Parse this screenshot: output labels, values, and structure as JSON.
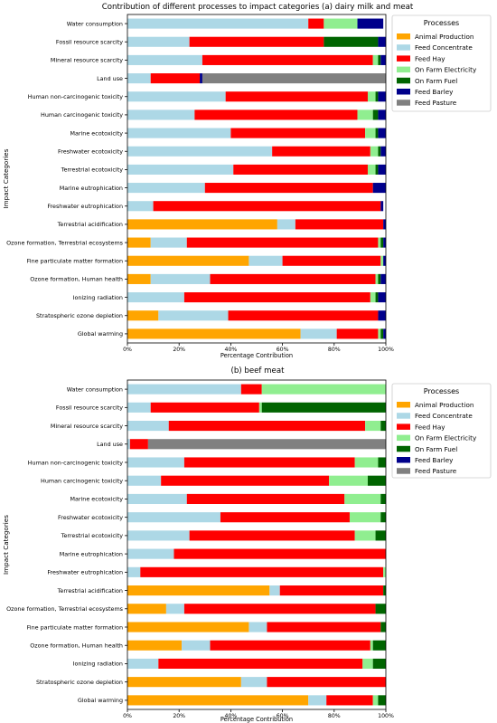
{
  "chart_data": [
    {
      "type": "bar",
      "orientation": "horizontal",
      "stacked": true,
      "title": "Contribution of different processes to impact categories (a) dairy milk and meat",
      "xlabel": "Percentage Contribution",
      "ylabel": "Impact Categories",
      "xlim": [
        0,
        100
      ],
      "xticks": [
        "0%",
        "20%",
        "40%",
        "60%",
        "80%",
        "100%"
      ],
      "legend": {
        "title": "Processes",
        "placement": "right-outside"
      },
      "categories": [
        "Water consumption",
        "Fossil resource scarcity",
        "Mineral resource scarcity",
        "Land use",
        "Human non-carcinogenic toxicity",
        "Human carcinogenic toxicity",
        "Marine ecotoxicity",
        "Freshwater ecotoxicity",
        "Terrestrial ecotoxicity",
        "Marine eutrophication",
        "Freshwater eutrophication",
        "Terrestrial acidification",
        "Ozone formation, Terrestrial ecosystems",
        "Fine particulate matter formation",
        "Ozone formation, Human health",
        "Ionizing radiation",
        "Stratospheric ozone depletion",
        "Global warming"
      ],
      "series": [
        {
          "name": "Animal Production",
          "color": "#FFA500",
          "values": [
            0,
            0,
            0,
            0,
            0,
            0,
            0,
            0,
            0,
            0,
            0,
            58,
            9,
            47,
            9,
            0,
            12,
            67
          ]
        },
        {
          "name": "Feed Concentrate",
          "color": "#ADD8E6",
          "values": [
            70,
            24,
            29,
            9,
            38,
            26,
            40,
            56,
            41,
            30,
            10,
            7,
            14,
            13,
            23,
            22,
            27,
            14
          ]
        },
        {
          "name": "Feed Hay",
          "color": "#FF0000",
          "values": [
            6,
            52,
            66,
            19,
            55,
            63,
            52,
            38,
            52,
            65,
            88,
            34,
            74,
            38,
            64,
            72,
            58,
            16
          ]
        },
        {
          "name": "On Farm Electricity",
          "color": "#90EE90",
          "values": [
            13,
            0,
            2,
            0,
            3,
            6,
            4,
            3,
            3,
            0,
            0,
            0,
            1,
            1,
            1,
            2,
            0,
            1
          ]
        },
        {
          "name": "On Farm Fuel",
          "color": "#006400",
          "values": [
            0,
            21,
            1,
            0,
            1,
            2,
            1,
            1,
            1,
            0,
            0,
            0,
            1,
            0,
            1,
            1,
            0,
            1
          ]
        },
        {
          "name": "Feed Barley",
          "color": "#00008B",
          "values": [
            10,
            3,
            2,
            1,
            3,
            3,
            3,
            2,
            3,
            5,
            1,
            1,
            1,
            1,
            2,
            3,
            3,
            1
          ]
        },
        {
          "name": "Feed Pasture",
          "color": "#808080",
          "values": [
            0,
            0,
            0,
            71,
            0,
            0,
            0,
            0,
            0,
            0,
            0,
            0,
            0,
            0,
            0,
            0,
            0,
            0
          ]
        }
      ]
    },
    {
      "type": "bar",
      "orientation": "horizontal",
      "stacked": true,
      "title": "(b) beef meat",
      "xlabel": "Percentage Contribution",
      "ylabel": "Impact Categories",
      "xlim": [
        0,
        100
      ],
      "xticks": [
        "0%",
        "20%",
        "40%",
        "60%",
        "80%",
        "100%"
      ],
      "legend": {
        "title": "Processes",
        "placement": "top-right"
      },
      "categories": [
        "Water consumption",
        "Fossil resource scarcity",
        "Mineral resource scarcity",
        "Land use",
        "Human non-carcinogenic toxicity",
        "Human carcinogenic toxicity",
        "Marine ecotoxicity",
        "Freshwater ecotoxicity",
        "Terrestrial ecotoxicity",
        "Marine eutrophication",
        "Freshwater eutrophication",
        "Terrestrial acidification",
        "Ozone formation, Terrestrial ecosystems",
        "Fine particulate matter formation",
        "Ozone formation, Human health",
        "Ionizing radiation",
        "Stratospheric ozone depletion",
        "Global warming"
      ],
      "series": [
        {
          "name": "Animal Production",
          "color": "#FFA500",
          "values": [
            0,
            0,
            0,
            0,
            0,
            0,
            0,
            0,
            0,
            0,
            0,
            55,
            15,
            47,
            21,
            0,
            44,
            70
          ]
        },
        {
          "name": "Feed Concentrate",
          "color": "#ADD8E6",
          "values": [
            44,
            9,
            16,
            1,
            22,
            13,
            23,
            36,
            24,
            18,
            5,
            4,
            7,
            7,
            11,
            12,
            10,
            7
          ]
        },
        {
          "name": "Feed Hay",
          "color": "#FF0000",
          "values": [
            8,
            42,
            76,
            7,
            66,
            65,
            61,
            50,
            64,
            82,
            94,
            40,
            74,
            44,
            62,
            79,
            46,
            18
          ]
        },
        {
          "name": "On Farm Electricity",
          "color": "#90EE90",
          "values": [
            48,
            1,
            6,
            0,
            9,
            15,
            14,
            12,
            8,
            0,
            1,
            0,
            0,
            0,
            1,
            4,
            0,
            2
          ]
        },
        {
          "name": "On Farm Fuel",
          "color": "#006400",
          "values": [
            0,
            48,
            2,
            0,
            3,
            7,
            2,
            2,
            4,
            0,
            0,
            1,
            4,
            2,
            5,
            5,
            0,
            3
          ]
        },
        {
          "name": "Feed Barley",
          "color": "#00008B",
          "values": [
            0,
            0,
            0,
            0,
            0,
            0,
            0,
            0,
            0,
            0,
            0,
            0,
            0,
            0,
            0,
            0,
            0,
            0
          ]
        },
        {
          "name": "Feed Pasture",
          "color": "#808080",
          "values": [
            0,
            0,
            0,
            92,
            0,
            0,
            0,
            0,
            0,
            0,
            0,
            0,
            0,
            0,
            0,
            0,
            0,
            0
          ]
        }
      ]
    }
  ]
}
